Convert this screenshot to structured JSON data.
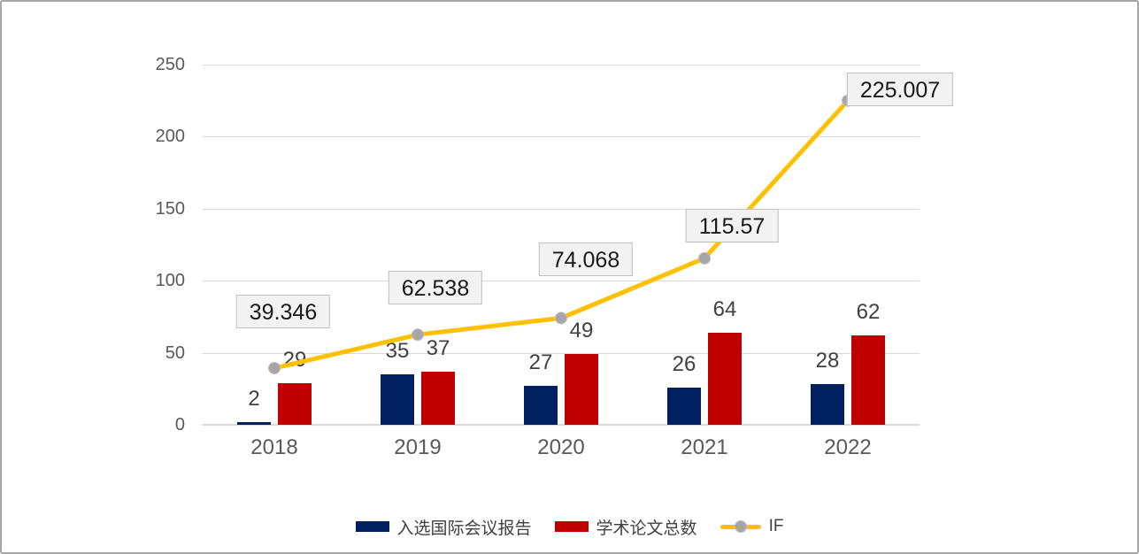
{
  "chart_data": {
    "type": "bar",
    "title": "",
    "categories": [
      "2018",
      "2019",
      "2020",
      "2021",
      "2022"
    ],
    "series": [
      {
        "name": "入选国际会议报告",
        "type": "bar",
        "color": "#002060",
        "values": [
          2,
          35,
          27,
          26,
          28
        ],
        "data_labels": [
          "2",
          "35",
          "27",
          "26",
          "28"
        ]
      },
      {
        "name": "学术论文总数",
        "type": "bar",
        "color": "#C00000",
        "values": [
          29,
          37,
          49,
          64,
          62
        ],
        "data_labels": [
          "29",
          "37",
          "49",
          "64",
          "62"
        ]
      },
      {
        "name": "IF",
        "type": "line",
        "color": "#FFC000",
        "marker_color": "#A6A6A6",
        "values": [
          39.346,
          62.538,
          74.068,
          115.57,
          225.007
        ],
        "data_labels": [
          "39.346",
          "62.538",
          "74.068",
          "115.57",
          "225.007"
        ]
      }
    ],
    "ylim": [
      0,
      250
    ],
    "yticks": [
      0,
      50,
      100,
      150,
      200,
      250
    ],
    "grid": true,
    "legend_position": "bottom",
    "colors": {
      "gridline": "#D9D9D9",
      "axis_line": "#D9D9D9",
      "tick_label": "#595959",
      "bar_label": "#404040",
      "point_label_bg": "#F2F2F2",
      "point_label_border": "#BFBFBF",
      "frame_border": "#A6A6A6"
    }
  }
}
